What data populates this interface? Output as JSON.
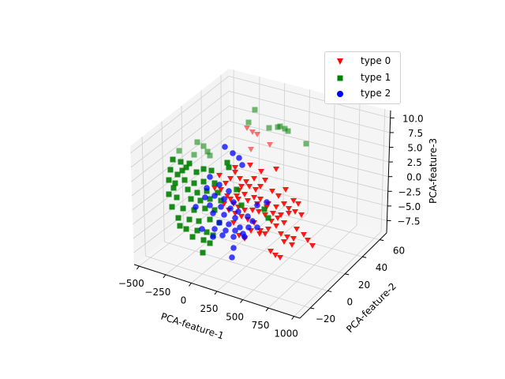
{
  "chart_data": {
    "type": "scatter3d",
    "title": "",
    "xlabel": "PCA-feature-1",
    "ylabel": "PCA-feature-2",
    "zlabel": "PCA-feature-3",
    "xticks": [
      "−500",
      "−250",
      "0",
      "250",
      "500",
      "750",
      "1000"
    ],
    "yticks": [
      "−20",
      "0",
      "20",
      "40",
      "60"
    ],
    "zticks": [
      "−7.5",
      "−5.0",
      "−2.5",
      "0.0",
      "2.5",
      "5.0",
      "7.5",
      "10.0"
    ],
    "xlim": [
      -600,
      1100
    ],
    "ylim": [
      -30,
      70
    ],
    "zlim": [
      -10,
      11
    ],
    "grid": true,
    "legend_position": "upper right",
    "series": [
      {
        "name": "type 0",
        "marker": "triangle-down",
        "color": "#ff0000",
        "screen_points": [
          [
            313,
            162
          ],
          [
            320,
            167
          ],
          [
            326,
            170
          ],
          [
            318,
            189
          ],
          [
            342,
            183
          ],
          [
            298,
            212
          ],
          [
            317,
            209
          ],
          [
            331,
            217
          ],
          [
            350,
            214
          ],
          [
            304,
            226
          ],
          [
            312,
            230
          ],
          [
            316,
            236
          ],
          [
            303,
            241
          ],
          [
            324,
            240
          ],
          [
            336,
            228
          ],
          [
            345,
            242
          ],
          [
            362,
            240
          ],
          [
            353,
            248
          ],
          [
            372,
            254
          ],
          [
            378,
            258
          ],
          [
            360,
            258
          ],
          [
            350,
            262
          ],
          [
            340,
            258
          ],
          [
            330,
            252
          ],
          [
            322,
            250
          ],
          [
            310,
            246
          ],
          [
            300,
            248
          ],
          [
            292,
            252
          ],
          [
            296,
            258
          ],
          [
            302,
            262
          ],
          [
            310,
            266
          ],
          [
            320,
            266
          ],
          [
            328,
            268
          ],
          [
            336,
            272
          ],
          [
            346,
            270
          ],
          [
            356,
            272
          ],
          [
            366,
            270
          ],
          [
            374,
            268
          ],
          [
            382,
            272
          ],
          [
            360,
            282
          ],
          [
            350,
            286
          ],
          [
            340,
            290
          ],
          [
            330,
            292
          ],
          [
            322,
            282
          ],
          [
            314,
            278
          ],
          [
            306,
            274
          ],
          [
            298,
            270
          ],
          [
            290,
            266
          ],
          [
            284,
            258
          ],
          [
            296,
            282
          ],
          [
            318,
            292
          ],
          [
            336,
            296
          ],
          [
            356,
            296
          ],
          [
            364,
            300
          ],
          [
            372,
            302
          ],
          [
            385,
            297
          ],
          [
            390,
            304
          ],
          [
            396,
            311
          ],
          [
            370,
            310
          ],
          [
            343,
            318
          ],
          [
            349,
            323
          ],
          [
            355,
            326
          ],
          [
            303,
            298
          ],
          [
            310,
            302
          ],
          [
            280,
            240
          ],
          [
            286,
            232
          ],
          [
            292,
            226
          ],
          [
            288,
            248
          ],
          [
            302,
            252
          ],
          [
            314,
            254
          ],
          [
            326,
            258
          ],
          [
            338,
            262
          ],
          [
            344,
            280
          ],
          [
            352,
            276
          ],
          [
            366,
            264
          ],
          [
            376,
            290
          ],
          [
            360,
            306
          ],
          [
            329,
            296
          ],
          [
            272,
            238
          ],
          [
            278,
            222
          ],
          [
            298,
            218
          ],
          [
            306,
            236
          ],
          [
            322,
            226
          ],
          [
            330,
            236
          ]
        ],
        "opacity_note": "some far points semi-transparent"
      },
      {
        "name": "type 1",
        "marker": "square",
        "color": "#008000",
        "screen_points": [
          [
            323,
            139
          ],
          [
            315,
            155
          ],
          [
            341,
            162
          ],
          [
            352,
            161
          ],
          [
            355,
            160
          ],
          [
            361,
            163
          ],
          [
            365,
            166
          ],
          [
            388,
            182
          ],
          [
            250,
            180
          ],
          [
            258,
            185
          ],
          [
            263,
            192
          ],
          [
            227,
            191
          ],
          [
            266,
            197
          ],
          [
            219,
            202
          ],
          [
            229,
            205
          ],
          [
            240,
            207
          ],
          [
            216,
            215
          ],
          [
            231,
            216
          ],
          [
            225,
            221
          ],
          [
            249,
            218
          ],
          [
            258,
            214
          ],
          [
            268,
            216
          ],
          [
            214,
            228
          ],
          [
            234,
            228
          ],
          [
            246,
            232
          ],
          [
            258,
            230
          ],
          [
            272,
            232
          ],
          [
            220,
            238
          ],
          [
            238,
            240
          ],
          [
            250,
            244
          ],
          [
            262,
            242
          ],
          [
            276,
            244
          ],
          [
            224,
            250
          ],
          [
            242,
            252
          ],
          [
            254,
            254
          ],
          [
            266,
            252
          ],
          [
            280,
            254
          ],
          [
            218,
            262
          ],
          [
            232,
            264
          ],
          [
            246,
            266
          ],
          [
            260,
            264
          ],
          [
            272,
            266
          ],
          [
            226,
            276
          ],
          [
            240,
            278
          ],
          [
            252,
            280
          ],
          [
            266,
            278
          ],
          [
            278,
            282
          ],
          [
            236,
            290
          ],
          [
            250,
            292
          ],
          [
            262,
            294
          ],
          [
            270,
            298
          ],
          [
            244,
            300
          ],
          [
            258,
            304
          ],
          [
            266,
            308
          ],
          [
            257,
            320
          ],
          [
            228,
            286
          ],
          [
            214,
            246
          ],
          [
            300,
            240
          ],
          [
            306,
            260
          ],
          [
            340,
            276
          ],
          [
            335,
            265
          ],
          [
            290,
            212
          ],
          [
            246,
            196
          ],
          [
            236,
            212
          ],
          [
            222,
            232
          ],
          [
            288,
            206
          ]
        ]
      },
      {
        "name": "type 2",
        "marker": "circle",
        "color": "#0000ff",
        "screen_points": [
          [
            285,
            186
          ],
          [
            295,
            194
          ],
          [
            303,
            200
          ],
          [
            307,
            209
          ],
          [
            266,
            224
          ],
          [
            278,
            234
          ],
          [
            262,
            238
          ],
          [
            290,
            242
          ],
          [
            272,
            248
          ],
          [
            284,
            252
          ],
          [
            296,
            256
          ],
          [
            266,
            260
          ],
          [
            280,
            262
          ],
          [
            292,
            264
          ],
          [
            270,
            270
          ],
          [
            284,
            272
          ],
          [
            298,
            276
          ],
          [
            278,
            282
          ],
          [
            290,
            284
          ],
          [
            304,
            288
          ],
          [
            272,
            290
          ],
          [
            286,
            292
          ],
          [
            298,
            292
          ],
          [
            270,
            300
          ],
          [
            282,
            298
          ],
          [
            296,
            300
          ],
          [
            308,
            296
          ],
          [
            315,
            288
          ],
          [
            310,
            300
          ],
          [
            294,
            326
          ],
          [
            296,
            314
          ],
          [
            314,
            274
          ],
          [
            320,
            280
          ],
          [
            326,
            288
          ],
          [
            302,
            268
          ],
          [
            338,
            256
          ],
          [
            326,
            260
          ],
          [
            260,
            250
          ],
          [
            248,
            262
          ],
          [
            256,
            290
          ]
        ]
      }
    ]
  },
  "legend": {
    "items": [
      {
        "label": "type 0",
        "color": "#ff0000"
      },
      {
        "label": "type 1",
        "color": "#008000"
      },
      {
        "label": "type 2",
        "color": "#0000ff"
      }
    ]
  }
}
